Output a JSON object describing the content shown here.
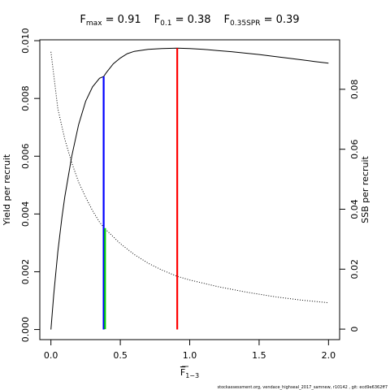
{
  "chart_data": {
    "type": "line",
    "title": {
      "parts": [
        {
          "main": "F",
          "sub": "max",
          "value": " = 0.91"
        },
        {
          "main": "F",
          "sub": "0.1",
          "value": " = 0.38"
        },
        {
          "main": "F",
          "sub": "0.35SPR",
          "value": " = 0.39"
        }
      ]
    },
    "xlabel": {
      "main": "F",
      "sub": "1−3",
      "overline": true
    },
    "ylabel_left": "Yield per recruit",
    "ylabel_right": "SSB per recruit",
    "xlim": [
      -0.08,
      2.08
    ],
    "ylim_left": [
      -0.00035,
      0.01003
    ],
    "ylim_right": [
      -0.0035,
      0.0965
    ],
    "x_ticks": [
      0,
      0.5,
      1,
      1.5,
      2
    ],
    "x_tick_labels": [
      "0.0",
      "0.5",
      "1.0",
      "1.5",
      "2.0"
    ],
    "y_ticks_left": [
      0,
      0.002,
      0.004,
      0.006,
      0.008,
      0.01
    ],
    "y_tick_labels_left": [
      "0.000",
      "0.002",
      "0.004",
      "0.006",
      "0.008",
      "0.010"
    ],
    "y_ticks_right": [
      0,
      0.02,
      0.04,
      0.06,
      0.08
    ],
    "y_tick_labels_right": [
      "0",
      "0.02",
      "0.04",
      "0.06",
      "0.08"
    ],
    "series": [
      {
        "axis": "left",
        "style": "solid",
        "color": "#000000",
        "x": [
          0,
          0.02,
          0.05,
          0.08,
          0.1,
          0.15,
          0.2,
          0.25,
          0.3,
          0.35,
          0.38,
          0.4,
          0.45,
          0.5,
          0.55,
          0.6,
          0.7,
          0.8,
          0.91,
          1.0,
          1.1,
          1.2,
          1.3,
          1.4,
          1.5,
          1.6,
          1.7,
          1.8,
          1.9,
          2.0
        ],
        "values": [
          0,
          0.0012,
          0.0027,
          0.0039,
          0.0046,
          0.006,
          0.0071,
          0.0079,
          0.0084,
          0.0087,
          0.00876,
          0.0089,
          0.0092,
          0.0094,
          0.00955,
          0.00963,
          0.0097,
          0.00973,
          0.00974,
          0.00973,
          0.0097,
          0.00966,
          0.00962,
          0.00957,
          0.00952,
          0.00946,
          0.0094,
          0.00934,
          0.00928,
          0.00922
        ]
      },
      {
        "axis": "right",
        "style": "dotted",
        "color": "#000000",
        "x": [
          0,
          0.05,
          0.1,
          0.15,
          0.2,
          0.25,
          0.3,
          0.35,
          0.38,
          0.4,
          0.5,
          0.6,
          0.7,
          0.8,
          0.91,
          1.0,
          1.2,
          1.4,
          1.6,
          1.8,
          2.0
        ],
        "values": [
          0.0925,
          0.0735,
          0.0633,
          0.0555,
          0.049,
          0.044,
          0.0395,
          0.0357,
          0.034,
          0.033,
          0.0285,
          0.0249,
          0.022,
          0.0197,
          0.0176,
          0.0164,
          0.0142,
          0.0124,
          0.0109,
          0.0097,
          0.0088
        ]
      }
    ],
    "reference_lines": [
      {
        "name": "F0.1",
        "x": 0.38,
        "y_from": 0,
        "y_to": 0.00876,
        "axis": "left",
        "color": "#0000ff"
      },
      {
        "name": "F0.35SPR",
        "x": 0.39,
        "y_from": 0,
        "y_to": 0.0337,
        "axis": "right",
        "color": "#00cd00"
      },
      {
        "name": "Fmax",
        "x": 0.91,
        "y_from": 0,
        "y_to": 0.00974,
        "axis": "left",
        "color": "#ff0000"
      }
    ],
    "footer_text": "stockassessment.org, vendace_highseal_2017_samnew, r10142 , git: ecd9e6362ff7"
  }
}
